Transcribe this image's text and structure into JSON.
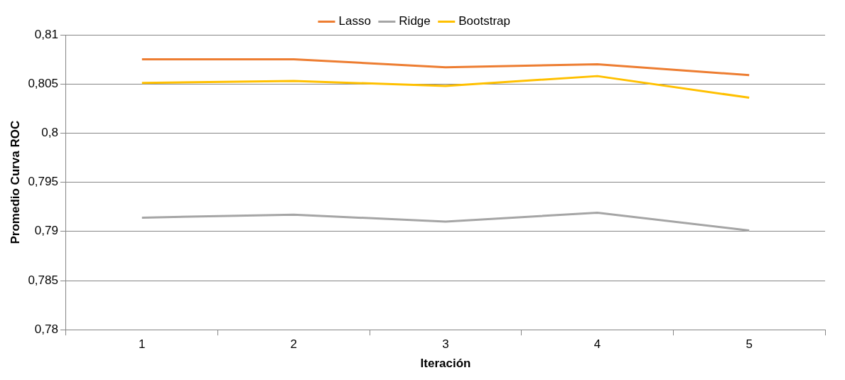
{
  "chart_data": {
    "type": "line",
    "xlabel": "Iteración",
    "ylabel": "Promedio Curva ROC",
    "categories": [
      "1",
      "2",
      "3",
      "4",
      "5"
    ],
    "series": [
      {
        "name": "Lasso",
        "color": "#ed7d31",
        "values": [
          0.8075,
          0.8075,
          0.8067,
          0.807,
          0.8059
        ]
      },
      {
        "name": "Ridge",
        "color": "#a5a5a5",
        "values": [
          0.7914,
          0.7917,
          0.791,
          0.7919,
          0.7901
        ]
      },
      {
        "name": "Bootstrap",
        "color": "#ffc000",
        "values": [
          0.8051,
          0.8053,
          0.8048,
          0.8058,
          0.8036
        ]
      }
    ],
    "ylim": [
      0.78,
      0.81
    ],
    "yticks": [
      {
        "value": 0.78,
        "label": "0,78"
      },
      {
        "value": 0.785,
        "label": "0,785"
      },
      {
        "value": 0.79,
        "label": "0,79"
      },
      {
        "value": 0.795,
        "label": "0,795"
      },
      {
        "value": 0.8,
        "label": "0,8"
      },
      {
        "value": 0.805,
        "label": "0,805"
      },
      {
        "value": 0.81,
        "label": "0,81"
      }
    ],
    "grid": "y",
    "legend": "top",
    "marker": "none",
    "line_style": "solid"
  }
}
